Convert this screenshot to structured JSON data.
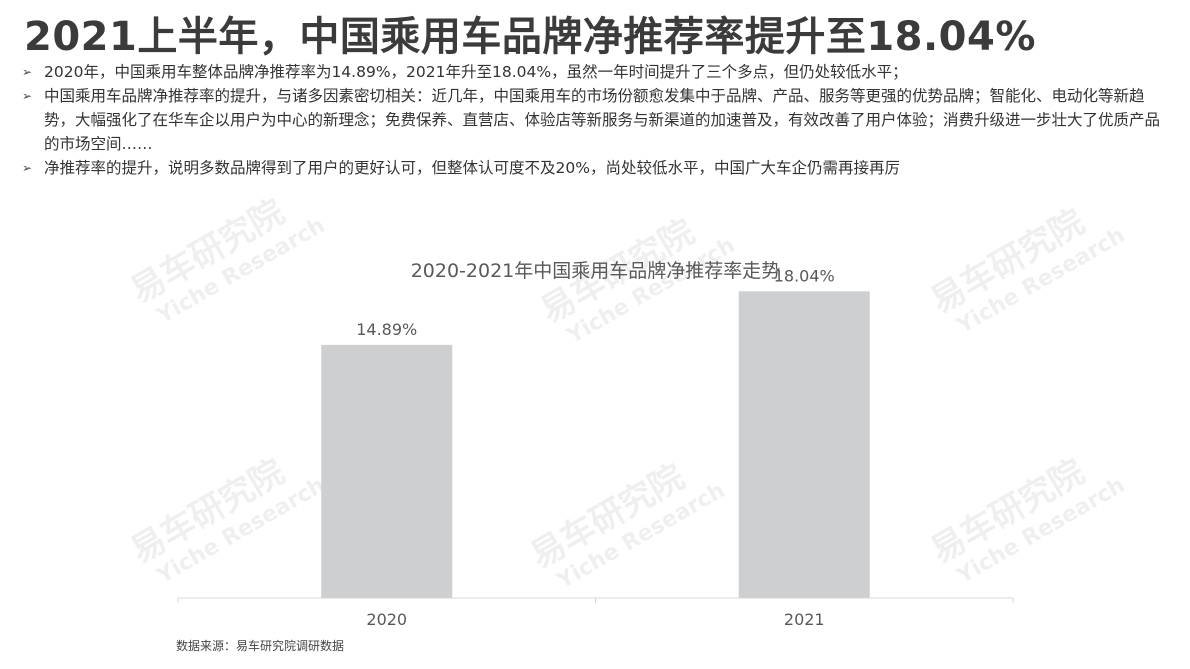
{
  "header": {
    "title": "2021上半年，中国乘用车品牌净推荐率提升至18.04%"
  },
  "bullets": [
    "2020年，中国乘用车整体品牌净推荐率为14.89%，2021年升至18.04%，虽然一年时间提升了三个多点，但仍处较低水平；",
    "中国乘用车品牌净推荐率的提升，与诸多因素密切相关：近几年，中国乘用车的市场份额愈发集中于品牌、产品、服务等更强的优势品牌；智能化、电动化等新趋势，大幅强化了在华车企以用户为中心的新理念；免费保养、直营店、体验店等新服务与新渠道的加速普及，有效改善了用户体验；消费升级进一步壮大了优质产品的市场空间……",
    "净推荐率的提升，说明多数品牌得到了用户的更好认可，但整体认可度不及20%，尚处较低水平，中国广大车企仍需再接再厉"
  ],
  "watermark": {
    "cn": "易车研究院",
    "en": "Yiche Research"
  },
  "chart_data": {
    "type": "bar",
    "title": "2020-2021年中国乘用车品牌净推荐率走势",
    "categories": [
      "2020",
      "2021"
    ],
    "values": [
      14.89,
      18.04
    ],
    "value_labels": [
      "14.89%",
      "18.04%"
    ],
    "ylim": [
      0,
      20
    ],
    "grid": false,
    "bar_color": "#cdcfd1"
  },
  "footer": {
    "source": "数据来源：易车研究院调研数据"
  }
}
